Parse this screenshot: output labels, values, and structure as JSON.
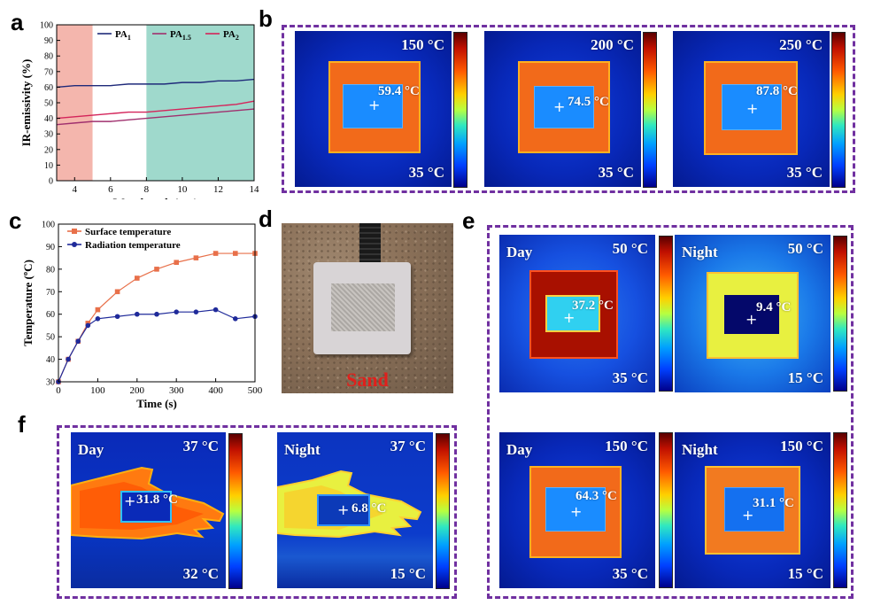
{
  "panels": {
    "a": "a",
    "b": "b",
    "c": "c",
    "d": "d",
    "e": "e",
    "f": "f"
  },
  "chart_data": [
    {
      "type": "line",
      "panel": "a",
      "xlabel": "Wavelength (μm)",
      "ylabel": "IR-emissivity (%)",
      "xlim": [
        3,
        14
      ],
      "ylim": [
        0,
        100
      ],
      "xticks": [
        4,
        6,
        8,
        10,
        12,
        14
      ],
      "yticks": [
        0,
        10,
        20,
        30,
        40,
        50,
        60,
        70,
        80,
        90,
        100
      ],
      "shaded_regions": [
        {
          "from": 3,
          "to": 5,
          "color": "#f4b6ad"
        },
        {
          "from": 8,
          "to": 14,
          "color": "#9fd9cc"
        }
      ],
      "legend": [
        {
          "base": "PA",
          "sub": "1",
          "color": "#1f2a7a"
        },
        {
          "base": "PA",
          "sub": "1.5",
          "color": "#a0306e"
        },
        {
          "base": "PA",
          "sub": "2",
          "color": "#d4245a"
        }
      ],
      "series": [
        {
          "name": "PA1",
          "color": "#1f2a7a",
          "x": [
            3,
            4,
            5,
            6,
            7,
            8,
            9,
            10,
            11,
            12,
            13,
            14
          ],
          "values": [
            60,
            61,
            61,
            61,
            62,
            62,
            62,
            63,
            63,
            64,
            64,
            65
          ]
        },
        {
          "name": "PA1.5",
          "color": "#a0306e",
          "x": [
            3,
            4,
            5,
            6,
            7,
            8,
            9,
            10,
            11,
            12,
            13,
            14
          ],
          "values": [
            36,
            37,
            38,
            38,
            39,
            40,
            41,
            42,
            43,
            44,
            45,
            46
          ]
        },
        {
          "name": "PA2",
          "color": "#d4245a",
          "x": [
            3,
            4,
            5,
            6,
            7,
            8,
            9,
            10,
            11,
            12,
            13,
            14
          ],
          "values": [
            40,
            41,
            42,
            43,
            44,
            44,
            45,
            46,
            47,
            48,
            49,
            51
          ]
        }
      ]
    },
    {
      "type": "line",
      "panel": "c",
      "xlabel": "Time (s)",
      "ylabel": "Temperature (ºC)",
      "xlim": [
        0,
        500
      ],
      "ylim": [
        30,
        100
      ],
      "xticks": [
        0,
        100,
        200,
        300,
        400,
        500
      ],
      "yticks": [
        30,
        40,
        50,
        60,
        70,
        80,
        90,
        100
      ],
      "series": [
        {
          "name": "Surface temperature",
          "color": "#e8704a",
          "x": [
            0,
            25,
            50,
            75,
            100,
            150,
            200,
            250,
            300,
            350,
            400,
            450,
            500
          ],
          "values": [
            30,
            40,
            48,
            56,
            62,
            70,
            76,
            80,
            83,
            85,
            87,
            87,
            87
          ]
        },
        {
          "name": "Radiation temperature",
          "color": "#1f2a9a",
          "x": [
            0,
            25,
            50,
            75,
            100,
            150,
            200,
            250,
            300,
            350,
            400,
            450,
            500
          ],
          "values": [
            30,
            40,
            48,
            55,
            58,
            59,
            60,
            60,
            61,
            61,
            62,
            58,
            59
          ]
        }
      ]
    }
  ],
  "b": {
    "images": [
      {
        "max": "150 °C",
        "min": "35 °C",
        "reading": "59.4 °C"
      },
      {
        "max": "200 °C",
        "min": "35 °C",
        "reading": "74.5 °C"
      },
      {
        "max": "250 °C",
        "min": "35 °C",
        "reading": "87.8 °C"
      }
    ]
  },
  "d": {
    "caption": "Sand"
  },
  "e": {
    "images": [
      {
        "mode": "Day",
        "max": "50 °C",
        "min": "35 °C",
        "reading": "37.2 °C"
      },
      {
        "mode": "Night",
        "max": "50 °C",
        "min": "15 °C",
        "reading": "9.4 °C"
      },
      {
        "mode": "Day",
        "max": "150 °C",
        "min": "35 °C",
        "reading": "64.3 °C"
      },
      {
        "mode": "Night",
        "max": "150 °C",
        "min": "15 °C",
        "reading": "31.1 °C"
      }
    ]
  },
  "f": {
    "images": [
      {
        "mode": "Day",
        "max": "37 °C",
        "min": "32 °C",
        "reading": "31.8 °C"
      },
      {
        "mode": "Night",
        "max": "37 °C",
        "min": "15 °C",
        "reading": "6.8 °C"
      }
    ]
  }
}
